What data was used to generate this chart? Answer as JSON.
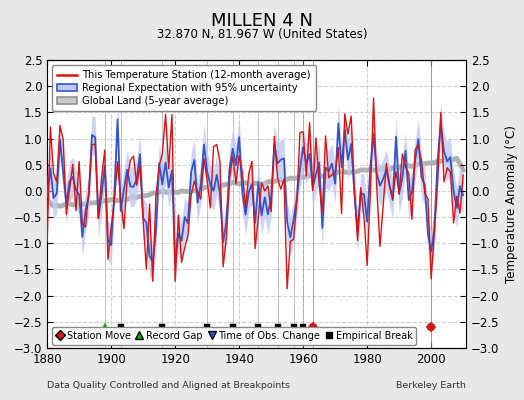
{
  "title": "MILLEN 4 N",
  "subtitle": "32.870 N, 81.967 W (United States)",
  "ylabel_right": "Temperature Anomaly (°C)",
  "footer_left": "Data Quality Controlled and Aligned at Breakpoints",
  "footer_right": "Berkeley Earth",
  "ylim": [
    -3.0,
    2.5
  ],
  "xlim": [
    1880,
    2011
  ],
  "yticks": [
    -3,
    -2.5,
    -2,
    -1.5,
    -1,
    -0.5,
    0,
    0.5,
    1,
    1.5,
    2,
    2.5
  ],
  "xticks": [
    1880,
    1900,
    1920,
    1940,
    1960,
    1980,
    2000
  ],
  "background_color": "#e8e8e8",
  "plot_bg": "#ffffff",
  "station_move_years": [
    1963,
    2000
  ],
  "record_gap_years": [
    1898
  ],
  "time_obs_change_years": [],
  "empirical_break_years": [
    1903,
    1916,
    1930,
    1938,
    1946,
    1952,
    1957,
    1960,
    1963,
    2000
  ],
  "seed": 12345
}
